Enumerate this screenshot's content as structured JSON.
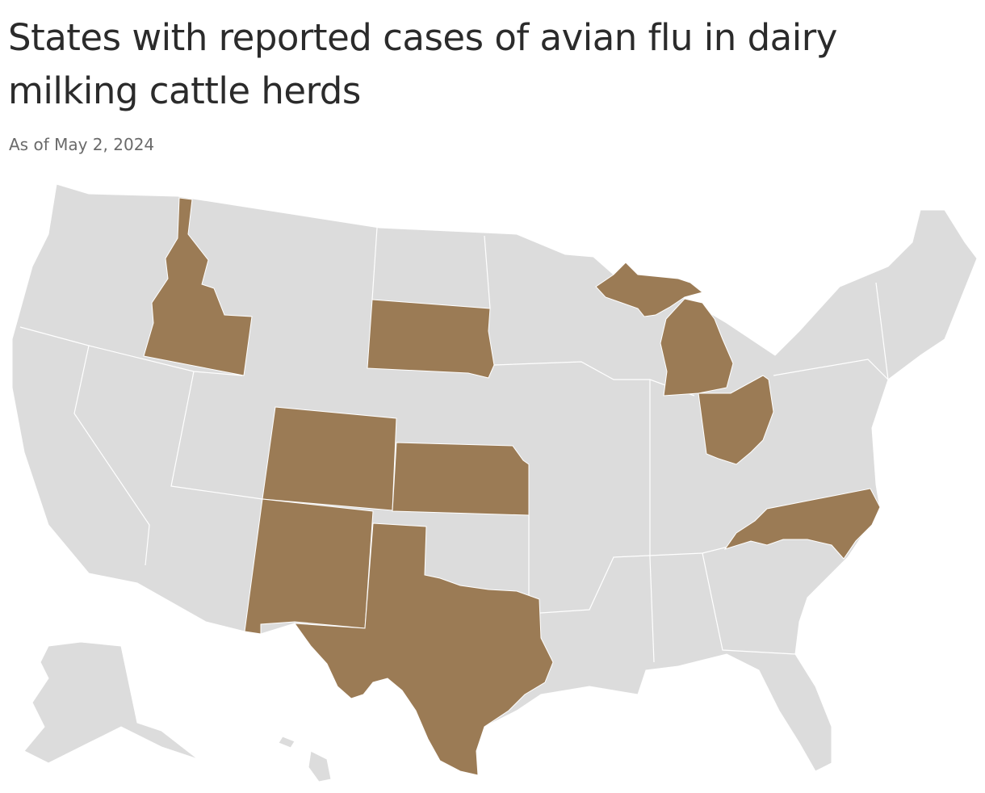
{
  "header": {
    "title": "States with reported cases of avian flu in dairy milking cattle herds",
    "subtitle": "As of May 2, 2024"
  },
  "map": {
    "base_color": "#dcdcdc",
    "highlight_color": "#9b7b55",
    "border_color": "#ffffff"
  }
}
